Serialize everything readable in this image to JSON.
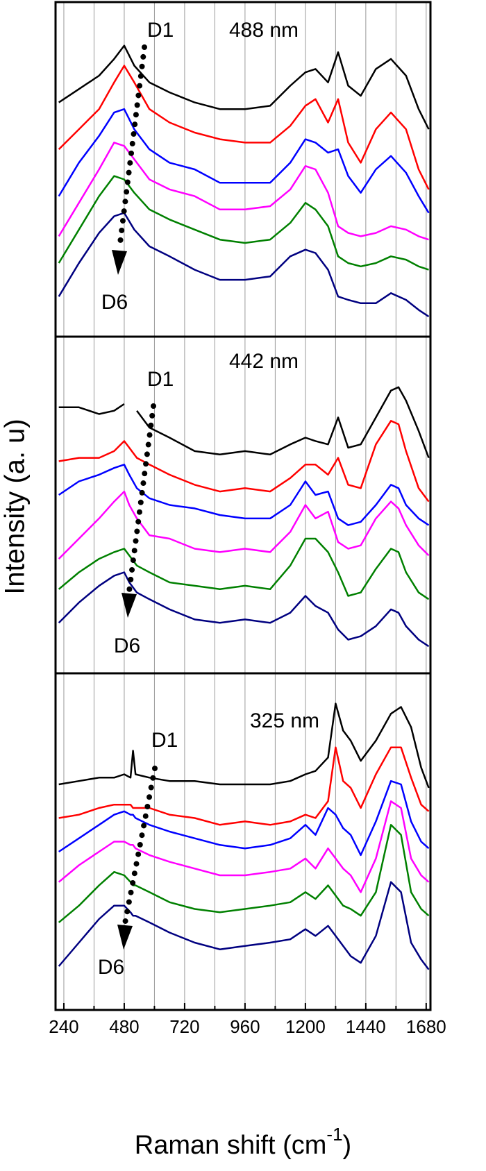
{
  "chart_data": [
    {
      "type": "line",
      "xlim": [
        207,
        1697
      ],
      "ylim": [
        0,
        100
      ],
      "x_minor_ticks": [
        360,
        600,
        840,
        1080,
        1320,
        1560
      ],
      "xticks": [
        240,
        480,
        720,
        960,
        1200,
        1440,
        1680
      ],
      "annotations": [
        "488 nm",
        "D1",
        "D6"
      ],
      "x": [
        220,
        300,
        380,
        440,
        480,
        520,
        580,
        660,
        760,
        860,
        960,
        1060,
        1140,
        1200,
        1240,
        1290,
        1330,
        1370,
        1420,
        1480,
        1540,
        1600,
        1650,
        1690
      ],
      "series": [
        {
          "color": "#000000",
          "values": [
            70,
            74,
            78,
            83,
            87,
            81,
            76,
            73,
            70,
            68,
            68,
            69,
            75,
            79,
            80,
            76,
            85,
            75,
            72,
            80,
            83,
            78,
            68,
            62
          ]
        },
        {
          "color": "#ff0000",
          "values": [
            56,
            62,
            68,
            76,
            81,
            76,
            68,
            64,
            61,
            59,
            58,
            58,
            63,
            69,
            71,
            64,
            71,
            58,
            52,
            62,
            67,
            62,
            50,
            44
          ]
        },
        {
          "color": "#0000ff",
          "values": [
            42,
            52,
            60,
            67,
            68,
            62,
            56,
            52,
            50,
            46,
            46,
            46,
            52,
            59,
            58,
            55,
            56,
            48,
            43,
            50,
            54,
            49,
            42,
            37
          ]
        },
        {
          "color": "#ff00ff",
          "values": [
            30,
            40,
            50,
            58,
            57,
            53,
            47,
            44,
            42,
            38,
            38,
            39,
            44,
            51,
            50,
            43,
            33,
            31,
            30,
            31,
            33,
            32,
            30,
            29
          ]
        },
        {
          "color": "#008000",
          "values": [
            22,
            32,
            42,
            48,
            47,
            43,
            38,
            35,
            32,
            29,
            28,
            29,
            34,
            40,
            38,
            33,
            24,
            22,
            21,
            22,
            24,
            23,
            21,
            20
          ]
        },
        {
          "color": "#000080",
          "values": [
            12,
            22,
            31,
            36,
            37,
            32,
            27,
            24,
            20,
            17,
            17,
            18,
            24,
            26,
            25,
            20,
            12,
            11,
            10,
            10,
            13,
            11,
            8,
            6
          ]
        }
      ]
    },
    {
      "type": "line",
      "xlim": [
        207,
        1697
      ],
      "ylim": [
        0,
        100
      ],
      "x_minor_ticks": [
        360,
        600,
        840,
        1080,
        1320,
        1560
      ],
      "xticks": [
        240,
        480,
        720,
        960,
        1200,
        1440,
        1680
      ],
      "ylabel": "Intensity (a. u)",
      "annotations": [
        "442 nm",
        "D1",
        "D6"
      ],
      "x": [
        220,
        300,
        380,
        440,
        480,
        500,
        530,
        580,
        660,
        760,
        860,
        960,
        1060,
        1140,
        1200,
        1240,
        1290,
        1330,
        1370,
        1420,
        1480,
        1540,
        1570,
        1600,
        1650,
        1690
      ],
      "series": [
        {
          "color": "#000000",
          "values": [
            79,
            79,
            77,
            78,
            80,
            null,
            78,
            73,
            70,
            66,
            65,
            66,
            65,
            68,
            70,
            69,
            68,
            76,
            67,
            68,
            76,
            84,
            85,
            81,
            72,
            64
          ]
        },
        {
          "color": "#ff0000",
          "values": [
            63,
            64,
            64,
            66,
            69,
            67,
            64,
            62,
            59,
            56,
            54,
            55,
            54,
            58,
            62,
            62,
            59,
            64,
            56,
            55,
            68,
            75,
            74,
            66,
            55,
            51
          ]
        },
        {
          "color": "#0000ff",
          "values": [
            53,
            57,
            59,
            61,
            62,
            59,
            55,
            52,
            50,
            49,
            47,
            46,
            46,
            50,
            57,
            53,
            54,
            46,
            44,
            45,
            50,
            56,
            55,
            50,
            46,
            44
          ]
        },
        {
          "color": "#ff00ff",
          "values": [
            34,
            40,
            46,
            51,
            54,
            50,
            46,
            41,
            40,
            37,
            36,
            37,
            36,
            42,
            50,
            46,
            48,
            39,
            37,
            38,
            46,
            51,
            49,
            44,
            38,
            35
          ]
        },
        {
          "color": "#008000",
          "values": [
            25,
            30,
            34,
            36,
            37,
            35,
            32,
            30,
            27,
            26,
            25,
            26,
            25,
            32,
            40,
            40,
            36,
            30,
            23,
            24,
            31,
            37,
            36,
            30,
            24,
            22
          ]
        },
        {
          "color": "#000080",
          "values": [
            15,
            21,
            26,
            29,
            30,
            27,
            24,
            22,
            19,
            16,
            15,
            16,
            15,
            18,
            23,
            20,
            18,
            13,
            10,
            11,
            14,
            19,
            18,
            14,
            10,
            8
          ]
        }
      ]
    },
    {
      "type": "line",
      "xlim": [
        207,
        1697
      ],
      "ylim": [
        0,
        100
      ],
      "x_minor_ticks": [
        360,
        600,
        840,
        1080,
        1320,
        1560
      ],
      "xticks": [
        240,
        480,
        720,
        960,
        1200,
        1440,
        1680
      ],
      "xlabel": {
        "text": "Raman shift  (cm",
        "superscript": "-1",
        "close": ")"
      },
      "annotations": [
        "325 nm",
        "D1",
        "D6"
      ],
      "x": [
        220,
        300,
        380,
        440,
        480,
        505,
        515,
        525,
        580,
        660,
        760,
        860,
        960,
        1060,
        1140,
        1200,
        1240,
        1290,
        1320,
        1350,
        1380,
        1420,
        1480,
        1540,
        1580,
        1620,
        1660,
        1690
      ],
      "series": [
        {
          "color": "#000000",
          "values": [
            67,
            68,
            69,
            69,
            70,
            69,
            77,
            70,
            69,
            68,
            68,
            67,
            67,
            67,
            68,
            70,
            71,
            75,
            91,
            83,
            80,
            74,
            80,
            88,
            90,
            84,
            72,
            66
          ]
        },
        {
          "color": "#ff0000",
          "values": [
            57,
            58,
            60,
            61,
            61,
            61,
            60,
            60,
            60,
            58,
            57,
            55,
            56,
            55,
            56,
            58,
            57,
            62,
            78,
            68,
            66,
            60,
            70,
            78,
            78,
            69,
            61,
            59
          ]
        },
        {
          "color": "#0000ff",
          "values": [
            47,
            51,
            55,
            58,
            59,
            58,
            58,
            57,
            55,
            53,
            51,
            49,
            48,
            49,
            51,
            55,
            52,
            60,
            58,
            54,
            52,
            46,
            56,
            68,
            67,
            56,
            50,
            48
          ]
        },
        {
          "color": "#ff00ff",
          "values": [
            38,
            43,
            47,
            50,
            50,
            49,
            49,
            48,
            46,
            44,
            42,
            40,
            40,
            41,
            42,
            45,
            42,
            48,
            45,
            42,
            40,
            35,
            45,
            62,
            60,
            45,
            40,
            38
          ]
        },
        {
          "color": "#008000",
          "values": [
            26,
            31,
            37,
            41,
            40,
            38,
            37,
            37,
            35,
            32,
            30,
            29,
            30,
            31,
            32,
            35,
            33,
            37,
            34,
            31,
            30,
            28,
            35,
            55,
            52,
            35,
            30,
            28
          ]
        },
        {
          "color": "#000080",
          "values": [
            13,
            20,
            27,
            31,
            31,
            29,
            28,
            28,
            26,
            23,
            20,
            18,
            19,
            20,
            21,
            24,
            22,
            25,
            22,
            19,
            16,
            14,
            22,
            38,
            35,
            20,
            15,
            12
          ]
        }
      ]
    }
  ]
}
